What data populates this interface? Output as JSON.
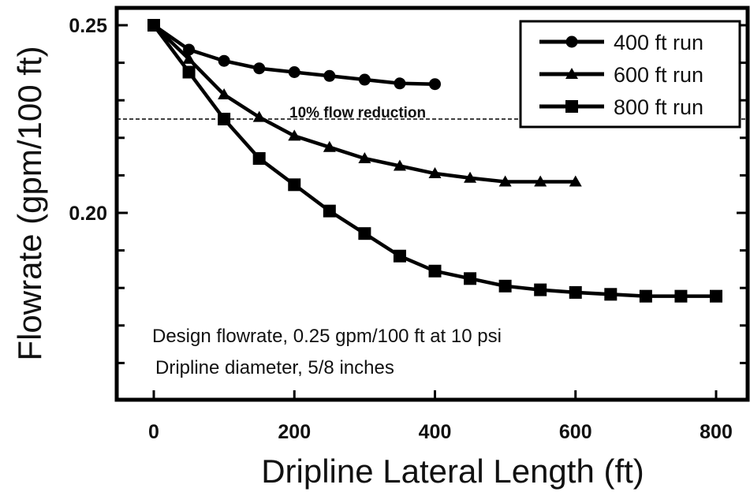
{
  "chart_data": {
    "type": "line",
    "xlabel": "Dripline Lateral Length (ft)",
    "ylabel": "Flowrate (gpm/100 ft)",
    "xlim": [
      -20,
      840
    ],
    "ylim": [
      0.155,
      0.255
    ],
    "xticks": [
      0,
      200,
      400,
      600,
      800
    ],
    "yticks_labeled": [
      0.2,
      0.25
    ],
    "ytick_labels": [
      "0.20",
      "0.25"
    ],
    "yticks_minor": [
      0.16,
      0.17,
      0.18,
      0.19,
      0.21,
      0.22,
      0.23,
      0.24
    ],
    "grid": false,
    "legend_position": "top-right",
    "series": [
      {
        "name": "400 ft run",
        "marker": "circle",
        "x": [
          0,
          50,
          100,
          150,
          200,
          250,
          300,
          350,
          400
        ],
        "y": [
          0.25,
          0.2435,
          0.2405,
          0.2385,
          0.2375,
          0.2365,
          0.2355,
          0.2345,
          0.2343
        ]
      },
      {
        "name": "600 ft run",
        "marker": "triangle",
        "x": [
          0,
          50,
          100,
          150,
          200,
          250,
          300,
          350,
          400,
          450,
          500,
          550,
          600
        ],
        "y": [
          0.25,
          0.241,
          0.2315,
          0.2255,
          0.2205,
          0.2175,
          0.2145,
          0.2125,
          0.2105,
          0.2093,
          0.2083,
          0.2083,
          0.2083
        ]
      },
      {
        "name": "800 ft run",
        "marker": "square",
        "x": [
          0,
          50,
          100,
          150,
          200,
          250,
          300,
          350,
          400,
          450,
          500,
          550,
          600,
          650,
          700,
          750,
          800
        ],
        "y": [
          0.25,
          0.2375,
          0.225,
          0.2145,
          0.2075,
          0.2005,
          0.1945,
          0.1885,
          0.1845,
          0.1825,
          0.1805,
          0.1795,
          0.1788,
          0.1783,
          0.1778,
          0.1778,
          0.1778
        ]
      }
    ],
    "reference_line": {
      "y": 0.225,
      "label": "10% flow reduction",
      "style": "dashed"
    },
    "annotations": [
      "Design flowrate, 0.25 gpm/100 ft at 10 psi",
      "Dripline diameter, 5/8 inches"
    ]
  }
}
